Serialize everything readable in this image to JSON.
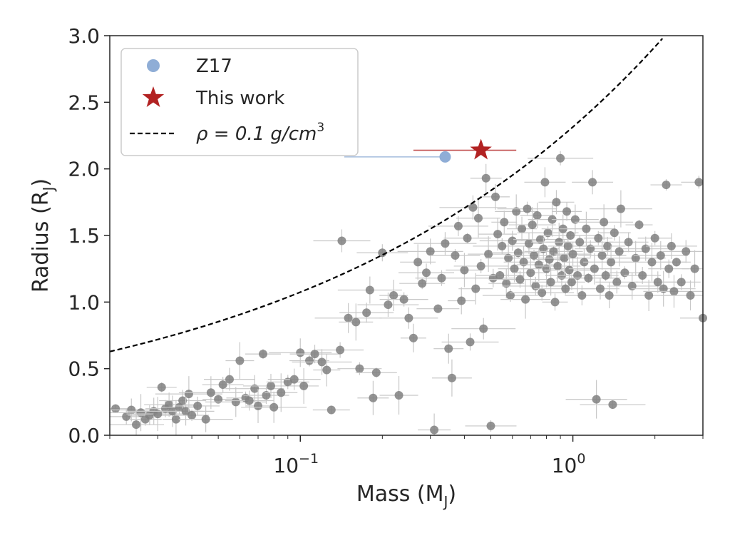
{
  "chart_data": {
    "type": "scatter",
    "xlabel_main": "Mass (M",
    "xlabel_sub": "J",
    "xlabel_close": ")",
    "ylabel_main": "Radius (R",
    "ylabel_sub": "J",
    "ylabel_close": ")",
    "xscale": "log",
    "xlim": [
      0.02,
      3.0
    ],
    "ylim": [
      0.0,
      3.0
    ],
    "grid": false,
    "legend_position": "top-left",
    "x_ticks": [
      {
        "value": 0.1,
        "base": "10",
        "exp": "−1"
      },
      {
        "value": 1.0,
        "base": "10",
        "exp": "0"
      }
    ],
    "y_ticks": [
      {
        "value": 0.0,
        "label": "0.0"
      },
      {
        "value": 0.5,
        "label": "0.5"
      },
      {
        "value": 1.0,
        "label": "1.0"
      },
      {
        "value": 1.5,
        "label": "1.5"
      },
      {
        "value": 2.0,
        "label": "2.0"
      },
      {
        "value": 2.5,
        "label": "2.5"
      },
      {
        "value": 3.0,
        "label": "3.0"
      }
    ],
    "legend": [
      {
        "label": "Z17",
        "kind": "circle",
        "color": "#8fadd6"
      },
      {
        "label": "This work",
        "kind": "star",
        "color": "#b22222"
      },
      {
        "label_prefix": "ρ = 0.1 g/cm",
        "label_sup": "3",
        "kind": "dashed-line",
        "color": "#000000"
      }
    ],
    "density_curve": {
      "rho_g_cm3": 0.1,
      "color": "#000000",
      "style": "dashed"
    },
    "highlight_points": [
      {
        "name": "Z17",
        "x": 0.34,
        "y": 2.09,
        "xerr_low": 0.195,
        "xerr_high": 0.0,
        "yerr": 0.0,
        "color": "#8fadd6",
        "marker": "circle"
      },
      {
        "name": "This work",
        "x": 0.46,
        "y": 2.14,
        "xerr_low": 0.2,
        "xerr_high": 0.16,
        "yerr": 0.0,
        "color": "#b22222",
        "marker": "star"
      }
    ],
    "background_color": "#808080",
    "background_points": [
      [
        0.021,
        0.2
      ],
      [
        0.023,
        0.14
      ],
      [
        0.024,
        0.19
      ],
      [
        0.025,
        0.08
      ],
      [
        0.026,
        0.17
      ],
      [
        0.027,
        0.12
      ],
      [
        0.028,
        0.15
      ],
      [
        0.029,
        0.18
      ],
      [
        0.03,
        0.16
      ],
      [
        0.031,
        0.36
      ],
      [
        0.032,
        0.2
      ],
      [
        0.033,
        0.23
      ],
      [
        0.034,
        0.18
      ],
      [
        0.035,
        0.12
      ],
      [
        0.036,
        0.21
      ],
      [
        0.037,
        0.26
      ],
      [
        0.038,
        0.18
      ],
      [
        0.039,
        0.31
      ],
      [
        0.04,
        0.15
      ],
      [
        0.042,
        0.22
      ],
      [
        0.045,
        0.12
      ],
      [
        0.047,
        0.32
      ],
      [
        0.05,
        0.27
      ],
      [
        0.052,
        0.38
      ],
      [
        0.055,
        0.42
      ],
      [
        0.058,
        0.25
      ],
      [
        0.06,
        0.56
      ],
      [
        0.063,
        0.28
      ],
      [
        0.065,
        0.26
      ],
      [
        0.068,
        0.35
      ],
      [
        0.07,
        0.22
      ],
      [
        0.073,
        0.61
      ],
      [
        0.075,
        0.3
      ],
      [
        0.078,
        0.37
      ],
      [
        0.08,
        0.21
      ],
      [
        0.085,
        0.32
      ],
      [
        0.09,
        0.4
      ],
      [
        0.095,
        0.42
      ],
      [
        0.1,
        0.62
      ],
      [
        0.103,
        0.37
      ],
      [
        0.108,
        0.56
      ],
      [
        0.113,
        0.61
      ],
      [
        0.12,
        0.55
      ],
      [
        0.125,
        0.49
      ],
      [
        0.13,
        0.19
      ],
      [
        0.14,
        0.64
      ],
      [
        0.142,
        1.46
      ],
      [
        0.15,
        0.88
      ],
      [
        0.16,
        0.85
      ],
      [
        0.165,
        0.5
      ],
      [
        0.175,
        0.92
      ],
      [
        0.18,
        1.09
      ],
      [
        0.185,
        0.28
      ],
      [
        0.19,
        0.47
      ],
      [
        0.2,
        1.37
      ],
      [
        0.21,
        0.98
      ],
      [
        0.22,
        1.05
      ],
      [
        0.23,
        0.3
      ],
      [
        0.24,
        1.02
      ],
      [
        0.25,
        0.88
      ],
      [
        0.26,
        0.73
      ],
      [
        0.27,
        1.3
      ],
      [
        0.28,
        1.14
      ],
      [
        0.29,
        1.22
      ],
      [
        0.3,
        1.38
      ],
      [
        0.31,
        0.04
      ],
      [
        0.32,
        0.95
      ],
      [
        0.33,
        1.18
      ],
      [
        0.34,
        1.44
      ],
      [
        0.35,
        0.65
      ],
      [
        0.36,
        0.43
      ],
      [
        0.37,
        1.35
      ],
      [
        0.38,
        1.57
      ],
      [
        0.39,
        1.01
      ],
      [
        0.4,
        1.24
      ],
      [
        0.41,
        1.48
      ],
      [
        0.42,
        0.7
      ],
      [
        0.43,
        1.71
      ],
      [
        0.44,
        1.1
      ],
      [
        0.45,
        1.63
      ],
      [
        0.46,
        1.27
      ],
      [
        0.47,
        0.8
      ],
      [
        0.48,
        1.93
      ],
      [
        0.49,
        1.36
      ],
      [
        0.5,
        0.07
      ],
      [
        0.51,
        1.18
      ],
      [
        0.52,
        1.79
      ],
      [
        0.53,
        1.51
      ],
      [
        0.54,
        1.2
      ],
      [
        0.55,
        1.42
      ],
      [
        0.56,
        1.6
      ],
      [
        0.57,
        1.14
      ],
      [
        0.58,
        1.33
      ],
      [
        0.59,
        1.05
      ],
      [
        0.6,
        1.46
      ],
      [
        0.61,
        1.25
      ],
      [
        0.62,
        1.68
      ],
      [
        0.63,
        1.37
      ],
      [
        0.64,
        1.17
      ],
      [
        0.65,
        1.55
      ],
      [
        0.66,
        1.3
      ],
      [
        0.67,
        1.02
      ],
      [
        0.68,
        1.7
      ],
      [
        0.69,
        1.44
      ],
      [
        0.7,
        1.22
      ],
      [
        0.71,
        1.58
      ],
      [
        0.72,
        1.35
      ],
      [
        0.73,
        1.12
      ],
      [
        0.74,
        1.65
      ],
      [
        0.75,
        1.28
      ],
      [
        0.76,
        1.47
      ],
      [
        0.77,
        1.07
      ],
      [
        0.78,
        1.4
      ],
      [
        0.79,
        1.9
      ],
      [
        0.8,
        1.25
      ],
      [
        0.81,
        1.52
      ],
      [
        0.82,
        1.32
      ],
      [
        0.83,
        1.15
      ],
      [
        0.84,
        1.62
      ],
      [
        0.85,
        1.38
      ],
      [
        0.86,
        1.0
      ],
      [
        0.87,
        1.75
      ],
      [
        0.88,
        1.27
      ],
      [
        0.89,
        1.45
      ],
      [
        0.9,
        2.08
      ],
      [
        0.91,
        1.2
      ],
      [
        0.92,
        1.55
      ],
      [
        0.93,
        1.33
      ],
      [
        0.94,
        1.1
      ],
      [
        0.95,
        1.68
      ],
      [
        0.96,
        1.42
      ],
      [
        0.97,
        1.24
      ],
      [
        0.98,
        1.5
      ],
      [
        0.99,
        1.15
      ],
      [
        1.0,
        1.36
      ],
      [
        1.02,
        1.62
      ],
      [
        1.04,
        1.2
      ],
      [
        1.06,
        1.45
      ],
      [
        1.08,
        1.05
      ],
      [
        1.1,
        1.3
      ],
      [
        1.12,
        1.55
      ],
      [
        1.14,
        1.18
      ],
      [
        1.16,
        1.4
      ],
      [
        1.18,
        1.9
      ],
      [
        1.2,
        1.25
      ],
      [
        1.22,
        0.27
      ],
      [
        1.24,
        1.48
      ],
      [
        1.26,
        1.1
      ],
      [
        1.28,
        1.35
      ],
      [
        1.3,
        1.6
      ],
      [
        1.32,
        1.2
      ],
      [
        1.34,
        1.42
      ],
      [
        1.36,
        1.05
      ],
      [
        1.38,
        1.3
      ],
      [
        1.4,
        0.23
      ],
      [
        1.42,
        1.52
      ],
      [
        1.45,
        1.15
      ],
      [
        1.48,
        1.38
      ],
      [
        1.5,
        1.7
      ],
      [
        1.55,
        1.22
      ],
      [
        1.6,
        1.45
      ],
      [
        1.65,
        1.12
      ],
      [
        1.7,
        1.33
      ],
      [
        1.75,
        1.58
      ],
      [
        1.8,
        1.2
      ],
      [
        1.85,
        1.4
      ],
      [
        1.9,
        1.05
      ],
      [
        1.95,
        1.3
      ],
      [
        2.0,
        1.48
      ],
      [
        2.05,
        1.15
      ],
      [
        2.1,
        1.35
      ],
      [
        2.15,
        1.1
      ],
      [
        2.2,
        1.88
      ],
      [
        2.25,
        1.25
      ],
      [
        2.3,
        1.42
      ],
      [
        2.35,
        1.08
      ],
      [
        2.4,
        1.3
      ],
      [
        2.5,
        1.15
      ],
      [
        2.6,
        1.38
      ],
      [
        2.7,
        1.05
      ],
      [
        2.8,
        1.25
      ],
      [
        2.9,
        1.9
      ],
      [
        3.0,
        0.88
      ]
    ]
  }
}
